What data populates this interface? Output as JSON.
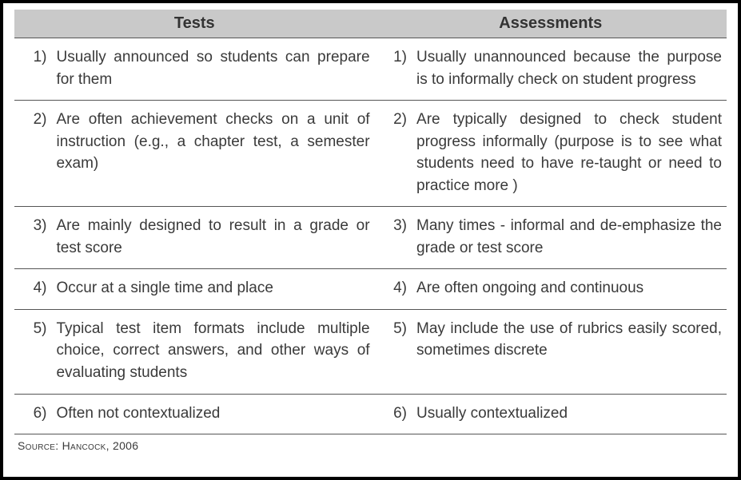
{
  "table": {
    "type": "table",
    "background_color": "#ffffff",
    "border_color": "#000000",
    "rule_color": "#555555",
    "header_bg": "#c9c9c9",
    "text_color": "#3a3a3a",
    "font_family": "Arial",
    "header_fontsize": 20,
    "body_fontsize": 19,
    "source_fontsize": 14,
    "columns": {
      "left": {
        "header": "Tests"
      },
      "right": {
        "header": "Assessments"
      }
    },
    "rows": [
      {
        "n": "1)",
        "left": "Usually announced so students can prepare for them",
        "right": "Usually unannounced because the purpose is to informally check on student progress"
      },
      {
        "n": "2)",
        "left": "Are often achievement checks on a unit of instruction (e.g., a chapter test, a semester exam)",
        "right": "Are typically designed to check student progress informally (purpose is to see what students need to have re-taught or need to practice more )"
      },
      {
        "n": "3)",
        "left": "Are mainly designed to result in a grade or test score",
        "right": "Many times - informal and de-emphasize the grade or test score"
      },
      {
        "n": "4)",
        "left": "Occur at a single time and place",
        "right": "Are often ongoing and continuous"
      },
      {
        "n": "5)",
        "left": "Typical test item formats include multiple choice, correct answers, and other ways of evaluating students",
        "right": "May include the use of rubrics easily scored, sometimes discrete"
      },
      {
        "n": "6)",
        "left": "Often not contextualized",
        "right": "Usually contextualized"
      }
    ],
    "source": "Source: Hancock, 2006"
  }
}
